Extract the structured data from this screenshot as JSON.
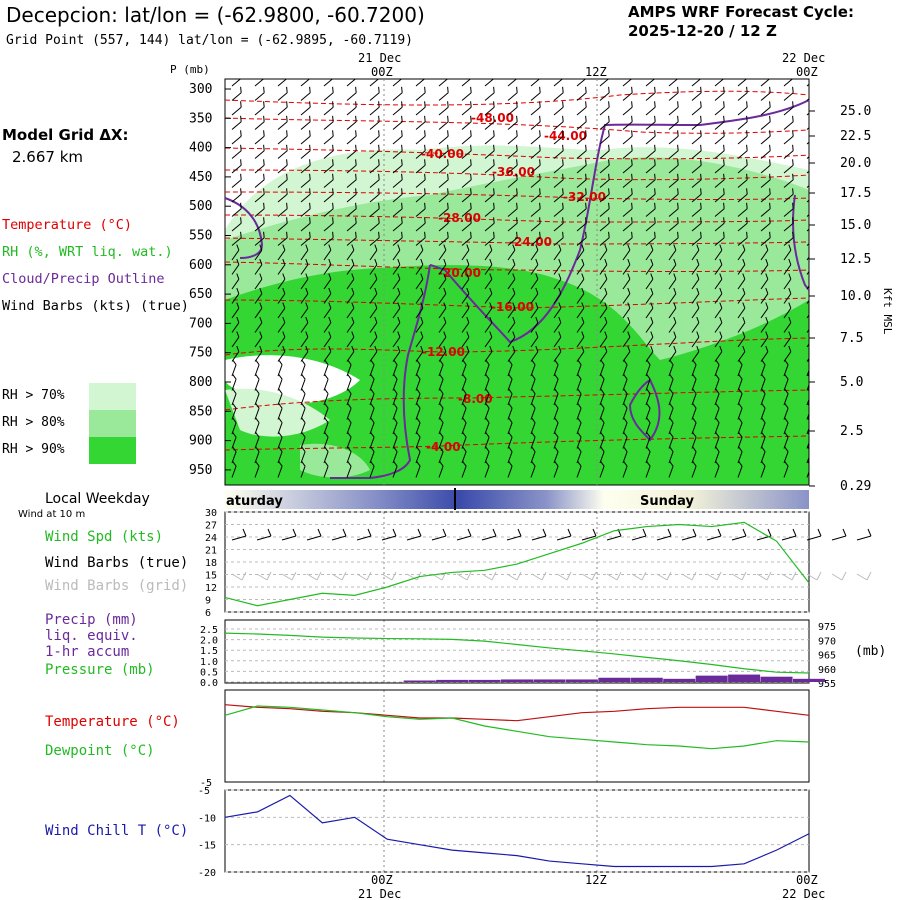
{
  "header": {
    "title": "Decepcion:  lat/lon = (-62.9800, -60.7200)",
    "grid_point": "Grid Point (557, 144) lat/lon = (-62.9895, -60.7119)",
    "forecast_label": "AMPS WRF Forecast Cycle:",
    "cycle": "2025-12-20 / 12  Z",
    "model_grid_label": "Model Grid ΔX:",
    "model_grid_value": "2.667 km"
  },
  "colors": {
    "temperature": "#dd0000",
    "rh": "#22bb22",
    "cloud": "#6a2a9a",
    "wind_chill": "#1a1aaa",
    "rh70": "#d2f5d2",
    "rh80": "#9ae89a",
    "rh90": "#33d633"
  },
  "legend": {
    "temperature": "Temperature (°C)",
    "rh": "RH (%, WRT liq. wat.)",
    "cloud": "Cloud/Precip Outline",
    "wind_barbs": "Wind Barbs (kts) (true)",
    "rh70": "RH > 70%",
    "rh80": "RH > 80%",
    "rh90": "RH > 90%"
  },
  "time_axis": {
    "top_dates": [
      "21 Dec",
      "22 Dec"
    ],
    "ticks": [
      "00Z",
      "12Z",
      "00Z"
    ],
    "bottom_dates": [
      "21 Dec",
      "22 Dec"
    ]
  },
  "weekday": {
    "label": "Local Weekday",
    "days": [
      "aturday",
      "Sunday"
    ]
  },
  "chart_data": [
    {
      "type": "contour",
      "name": "cross-section",
      "ylabel": "P (mb)",
      "ylabel_right": "Kft MSL",
      "pressure_ticks": [
        "300",
        "350",
        "400",
        "450",
        "500",
        "550",
        "600",
        "650",
        "700",
        "750",
        "800",
        "850",
        "900",
        "950"
      ],
      "height_ticks": [
        "25.0",
        "22.5",
        "20.0",
        "17.5",
        "15.0",
        "12.5",
        "10.0",
        "7.5",
        "5.0",
        "2.5",
        "0.29"
      ],
      "temperature_contour_labels": [
        "-48.00",
        "-44.00",
        "-40.00",
        "-36.00",
        "-32.00",
        "-28.00",
        "-24.00",
        "-20.00",
        "-16.00",
        "-12.00",
        "-8.00",
        "-4.00"
      ]
    },
    {
      "type": "line",
      "name": "surface-wind",
      "label_wind_at": "Wind at 10 m",
      "labels": [
        "Wind Spd (kts)",
        "Wind Barbs (true)",
        "Wind Barbs (grid)"
      ],
      "yticks": [
        "30",
        "27",
        "24",
        "21",
        "18",
        "15",
        "12",
        "9",
        "6"
      ],
      "ylim": [
        6,
        30
      ],
      "wind_speed": [
        9.5,
        7.5,
        9,
        10.5,
        10,
        12,
        14.5,
        15.5,
        16,
        17.5,
        20,
        22.5,
        25.5,
        26.5,
        27,
        26.5,
        27.5,
        23,
        13
      ]
    },
    {
      "type": "line",
      "name": "precip-pressure",
      "labels": [
        "Precip (mm)",
        "liq. equiv.",
        "1-hr accum",
        "Pressure (mb)"
      ],
      "unit_right": "(mb)",
      "precip_ticks": [
        "2.5",
        "2.0",
        "1.5",
        "1.0",
        "0.5",
        "0.0"
      ],
      "pressure_ticks": [
        "975",
        "970",
        "965",
        "960",
        "955"
      ],
      "pressure_ylim": [
        955,
        975
      ],
      "pressure": [
        972.5,
        972.2,
        971.7,
        971.1,
        970.8,
        970.6,
        970.5,
        970.3,
        969.7,
        968.5,
        967.3,
        966.3,
        965.2,
        964.0,
        962.8,
        961.5,
        960.0,
        958.8,
        958.5
      ],
      "precip_mm": [
        0,
        0,
        0,
        0,
        0,
        0,
        0.05,
        0.1,
        0.1,
        0.12,
        0.12,
        0.12,
        0.2,
        0.2,
        0.15,
        0.3,
        0.35,
        0.25,
        0.15
      ]
    },
    {
      "type": "line",
      "name": "temperature-dewpoint",
      "labels": [
        "Temperature (°C)",
        "Dewpoint (°C)"
      ],
      "ymin_label": "-5",
      "temperature": [
        0.8,
        0.6,
        0.5,
        0.3,
        0.2,
        0.0,
        -0.2,
        -0.2,
        -0.3,
        -0.4,
        -0.1,
        0.2,
        0.3,
        0.5,
        0.6,
        0.6,
        0.6,
        0.3,
        0.0
      ],
      "dewpoint": [
        0.0,
        0.7,
        0.6,
        0.4,
        0.2,
        -0.1,
        -0.3,
        -0.2,
        -0.8,
        -1.2,
        -1.6,
        -1.8,
        -2.0,
        -2.2,
        -2.3,
        -2.5,
        -2.3,
        -1.9,
        -2.0
      ]
    },
    {
      "type": "line",
      "name": "wind-chill",
      "labels": [
        "Wind Chill T (°C)"
      ],
      "yticks": [
        "-5",
        "-10",
        "-15",
        "-20"
      ],
      "ylim": [
        -20,
        -5
      ],
      "wind_chill": [
        -10,
        -9,
        -6,
        -11,
        -10,
        -14,
        -15,
        -16,
        -16.5,
        -17,
        -18,
        -18.5,
        -19,
        -19,
        -19,
        -19,
        -18.5,
        -16,
        -13
      ]
    }
  ]
}
